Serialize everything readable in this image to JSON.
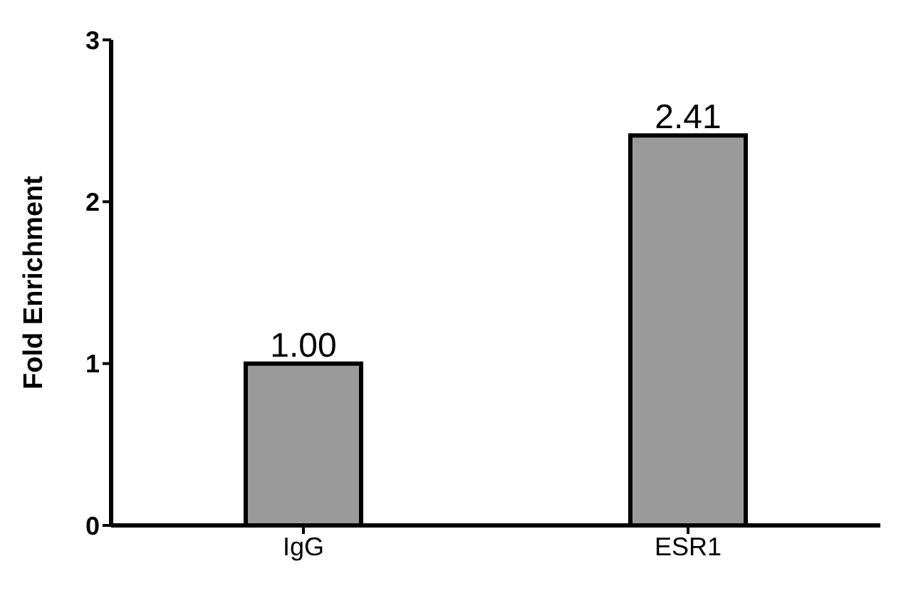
{
  "chart_data": {
    "type": "bar",
    "ylabel": "Fold Enrichment",
    "categories": [
      "IgG",
      "ESR1"
    ],
    "values": [
      1.0,
      2.41
    ],
    "value_labels": [
      "1.00",
      "2.41"
    ],
    "color": "#9a9a9a",
    "ylim": [
      0,
      3
    ],
    "yticks": [
      0,
      1,
      2,
      3
    ],
    "grid": false
  }
}
